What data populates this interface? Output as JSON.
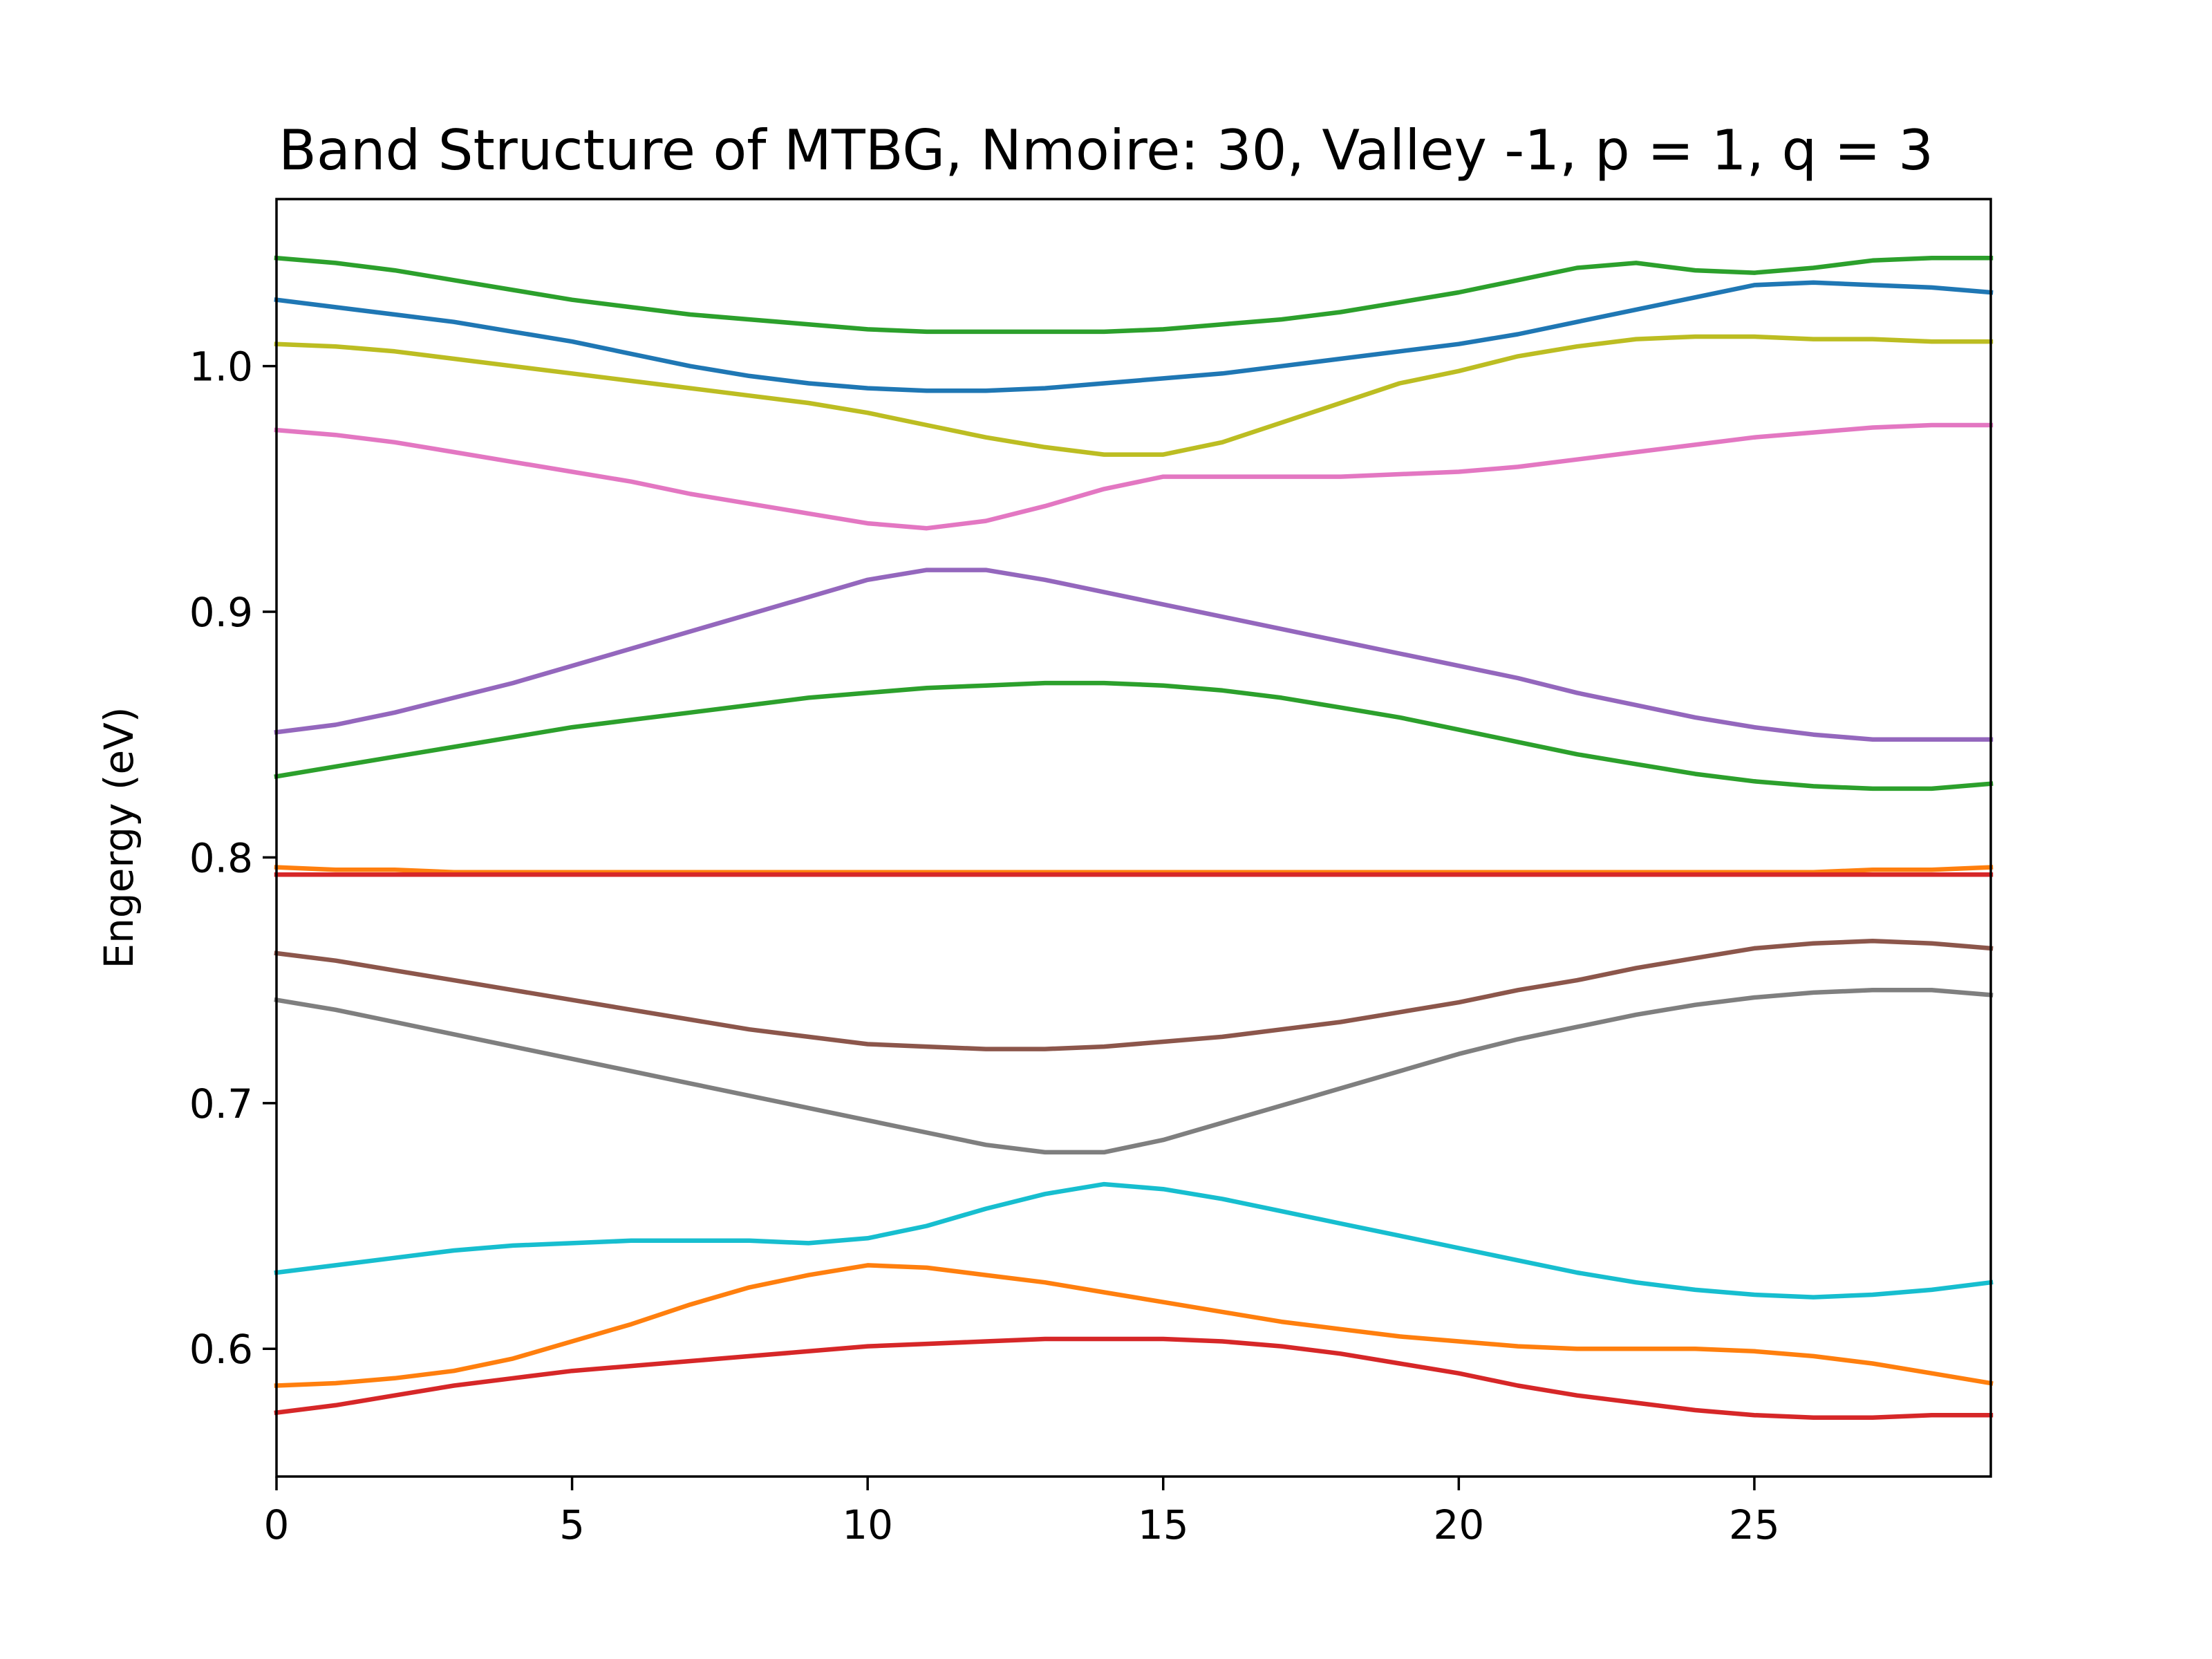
{
  "chart_data": {
    "type": "line",
    "title": "Band Structure of MTBG, Nmoire: 30, Valley -1, p = 1, q = 3",
    "xlabel": "",
    "ylabel": "Engergy (eV)",
    "xlim": [
      0,
      29
    ],
    "ylim": [
      0.548,
      1.068
    ],
    "xticks": [
      0,
      5,
      10,
      15,
      20,
      25
    ],
    "yticks": [
      0.6,
      0.7,
      0.8,
      0.9,
      1.0
    ],
    "xtick_labels": [
      "0",
      "5",
      "10",
      "15",
      "20",
      "25"
    ],
    "ytick_labels": [
      "0.6",
      "0.7",
      "0.8",
      "0.9",
      "1.0"
    ],
    "grid": false,
    "legend": "none",
    "x": [
      0,
      1,
      2,
      3,
      4,
      5,
      6,
      7,
      8,
      9,
      10,
      11,
      12,
      13,
      14,
      15,
      16,
      17,
      18,
      19,
      20,
      21,
      22,
      23,
      24,
      25,
      26,
      27,
      28,
      29
    ],
    "series": [
      {
        "color": "#2ca02c",
        "values": [
          1.044,
          1.042,
          1.039,
          1.035,
          1.031,
          1.027,
          1.024,
          1.021,
          1.019,
          1.017,
          1.015,
          1.014,
          1.014,
          1.014,
          1.014,
          1.015,
          1.017,
          1.019,
          1.022,
          1.026,
          1.03,
          1.035,
          1.04,
          1.042,
          1.039,
          1.038,
          1.04,
          1.043,
          1.044,
          1.044
        ]
      },
      {
        "color": "#1f77b4",
        "values": [
          1.027,
          1.024,
          1.021,
          1.018,
          1.014,
          1.01,
          1.005,
          1.0,
          0.996,
          0.993,
          0.991,
          0.99,
          0.99,
          0.991,
          0.993,
          0.995,
          0.997,
          1.0,
          1.003,
          1.006,
          1.009,
          1.013,
          1.018,
          1.023,
          1.028,
          1.033,
          1.034,
          1.033,
          1.032,
          1.03
        ]
      },
      {
        "color": "#bcbd22",
        "values": [
          1.009,
          1.008,
          1.006,
          1.003,
          1.0,
          0.997,
          0.994,
          0.991,
          0.988,
          0.985,
          0.981,
          0.976,
          0.971,
          0.967,
          0.964,
          0.964,
          0.969,
          0.977,
          0.985,
          0.993,
          0.998,
          1.004,
          1.008,
          1.011,
          1.012,
          1.012,
          1.011,
          1.011,
          1.01,
          1.01
        ]
      },
      {
        "color": "#e377c2",
        "values": [
          0.974,
          0.972,
          0.969,
          0.965,
          0.961,
          0.957,
          0.953,
          0.948,
          0.944,
          0.94,
          0.936,
          0.934,
          0.937,
          0.943,
          0.95,
          0.955,
          0.955,
          0.955,
          0.955,
          0.956,
          0.957,
          0.959,
          0.962,
          0.965,
          0.968,
          0.971,
          0.973,
          0.975,
          0.976,
          0.976
        ]
      },
      {
        "color": "#9467bd",
        "values": [
          0.851,
          0.854,
          0.859,
          0.865,
          0.871,
          0.878,
          0.885,
          0.892,
          0.899,
          0.906,
          0.913,
          0.917,
          0.917,
          0.913,
          0.908,
          0.903,
          0.898,
          0.893,
          0.888,
          0.883,
          0.878,
          0.873,
          0.867,
          0.862,
          0.857,
          0.853,
          0.85,
          0.848,
          0.848,
          0.848
        ]
      },
      {
        "color": "#2ca02c",
        "values": [
          0.833,
          0.837,
          0.841,
          0.845,
          0.849,
          0.853,
          0.856,
          0.859,
          0.862,
          0.865,
          0.867,
          0.869,
          0.87,
          0.871,
          0.871,
          0.87,
          0.868,
          0.865,
          0.861,
          0.857,
          0.852,
          0.847,
          0.842,
          0.838,
          0.834,
          0.831,
          0.829,
          0.828,
          0.828,
          0.83
        ]
      },
      {
        "color": "#ff7f0e",
        "values": [
          0.796,
          0.795,
          0.795,
          0.794,
          0.794,
          0.794,
          0.794,
          0.794,
          0.794,
          0.794,
          0.794,
          0.794,
          0.794,
          0.794,
          0.794,
          0.794,
          0.794,
          0.794,
          0.794,
          0.794,
          0.794,
          0.794,
          0.794,
          0.794,
          0.794,
          0.794,
          0.794,
          0.795,
          0.795,
          0.796
        ]
      },
      {
        "color": "#d62728",
        "values": [
          0.793,
          0.793,
          0.793,
          0.793,
          0.793,
          0.793,
          0.793,
          0.793,
          0.793,
          0.793,
          0.793,
          0.793,
          0.793,
          0.793,
          0.793,
          0.793,
          0.793,
          0.793,
          0.793,
          0.793,
          0.793,
          0.793,
          0.793,
          0.793,
          0.793,
          0.793,
          0.793,
          0.793,
          0.793,
          0.793
        ]
      },
      {
        "color": "#8c564b",
        "values": [
          0.761,
          0.758,
          0.754,
          0.75,
          0.746,
          0.742,
          0.738,
          0.734,
          0.73,
          0.727,
          0.724,
          0.723,
          0.722,
          0.722,
          0.723,
          0.725,
          0.727,
          0.73,
          0.733,
          0.737,
          0.741,
          0.746,
          0.75,
          0.755,
          0.759,
          0.763,
          0.765,
          0.766,
          0.765,
          0.763
        ]
      },
      {
        "color": "#7f7f7f",
        "values": [
          0.742,
          0.738,
          0.733,
          0.728,
          0.723,
          0.718,
          0.713,
          0.708,
          0.703,
          0.698,
          0.693,
          0.688,
          0.683,
          0.68,
          0.68,
          0.685,
          0.692,
          0.699,
          0.706,
          0.713,
          0.72,
          0.726,
          0.731,
          0.736,
          0.74,
          0.743,
          0.745,
          0.746,
          0.746,
          0.744
        ]
      },
      {
        "color": "#17becf",
        "values": [
          0.631,
          0.634,
          0.637,
          0.64,
          0.642,
          0.643,
          0.644,
          0.644,
          0.644,
          0.643,
          0.645,
          0.65,
          0.657,
          0.663,
          0.667,
          0.665,
          0.661,
          0.656,
          0.651,
          0.646,
          0.641,
          0.636,
          0.631,
          0.627,
          0.624,
          0.622,
          0.621,
          0.622,
          0.624,
          0.627
        ]
      },
      {
        "color": "#ff7f0e",
        "values": [
          0.585,
          0.586,
          0.588,
          0.591,
          0.596,
          0.603,
          0.61,
          0.618,
          0.625,
          0.63,
          0.634,
          0.633,
          0.63,
          0.627,
          0.623,
          0.619,
          0.615,
          0.611,
          0.608,
          0.605,
          0.603,
          0.601,
          0.6,
          0.6,
          0.6,
          0.599,
          0.597,
          0.594,
          0.59,
          0.586
        ]
      },
      {
        "color": "#d62728",
        "values": [
          0.574,
          0.577,
          0.581,
          0.585,
          0.588,
          0.591,
          0.593,
          0.595,
          0.597,
          0.599,
          0.601,
          0.602,
          0.603,
          0.604,
          0.604,
          0.604,
          0.603,
          0.601,
          0.598,
          0.594,
          0.59,
          0.585,
          0.581,
          0.578,
          0.575,
          0.573,
          0.572,
          0.572,
          0.573,
          0.573
        ]
      }
    ]
  }
}
